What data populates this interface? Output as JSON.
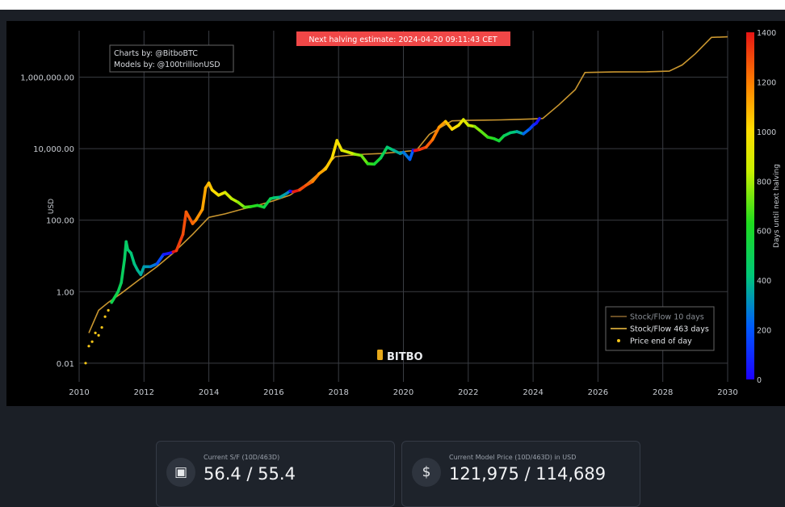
{
  "chart_data": {
    "type": "scatter",
    "title": "",
    "xlabel": "",
    "ylabel": "USD",
    "colorbar_label": "Days until next halving",
    "y_scale": "log",
    "xlim": [
      2010,
      2030
    ],
    "ylim": [
      0.003,
      20000000
    ],
    "x_ticks": [
      2010,
      2012,
      2014,
      2016,
      2018,
      2020,
      2022,
      2024,
      2026,
      2028,
      2030
    ],
    "y_ticks": [
      0.01,
      1,
      100,
      10000,
      1000000
    ],
    "y_tick_labels": [
      "0.01",
      "1.00",
      "100.00",
      "10,000.00",
      "1,000,000.00"
    ],
    "colorbar_range": [
      0,
      1400
    ],
    "colorbar_ticks": [
      0,
      200,
      400,
      600,
      800,
      1000,
      1200,
      1400
    ],
    "grid": true,
    "legend_position": "bottom-right",
    "annotation": "Next halving estimate: 2024-04-20 09:11:43 CET",
    "credits": [
      "Charts by: @BitboBTC",
      "Models by: @100trillionUSD"
    ],
    "watermark": "BITBO",
    "legend": [
      {
        "name": "Stock/Flow 10 days",
        "color": "#7a5a2a",
        "kind": "line"
      },
      {
        "name": "Stock/Flow 463 days",
        "color": "#d4a83a",
        "kind": "line"
      },
      {
        "name": "Price end of day",
        "color": "#f5c518",
        "kind": "dot"
      }
    ],
    "series": [
      {
        "name": "Stock/Flow 463 days",
        "kind": "line",
        "color": "#c9962f",
        "points": [
          [
            2010.3,
            0.07
          ],
          [
            2010.6,
            0.3
          ],
          [
            2010.9,
            0.5
          ],
          [
            2011.3,
            0.9
          ],
          [
            2011.8,
            2
          ],
          [
            2012.4,
            5
          ],
          [
            2012.9,
            12
          ],
          [
            2013.5,
            40
          ],
          [
            2014.0,
            120
          ],
          [
            2014.5,
            150
          ],
          [
            2015.0,
            200
          ],
          [
            2015.5,
            260
          ],
          [
            2016.0,
            350
          ],
          [
            2016.5,
            500
          ],
          [
            2017.0,
            1000
          ],
          [
            2017.5,
            2500
          ],
          [
            2017.9,
            6000
          ],
          [
            2018.3,
            6500
          ],
          [
            2018.8,
            7000
          ],
          [
            2019.3,
            7300
          ],
          [
            2019.8,
            8000
          ],
          [
            2020.4,
            9000
          ],
          [
            2020.8,
            25000
          ],
          [
            2021.2,
            42000
          ],
          [
            2021.5,
            60000
          ],
          [
            2022.0,
            62000
          ],
          [
            2022.5,
            63000
          ],
          [
            2023.0,
            64000
          ],
          [
            2023.5,
            66000
          ],
          [
            2024.0,
            68000
          ],
          [
            2024.3,
            70000
          ],
          [
            2024.8,
            170000
          ],
          [
            2025.3,
            450000
          ],
          [
            2025.6,
            1350000
          ],
          [
            2026.5,
            1400000
          ],
          [
            2027.5,
            1420000
          ],
          [
            2028.2,
            1480000
          ],
          [
            2028.6,
            2200000
          ],
          [
            2029.0,
            4500000
          ],
          [
            2029.5,
            13000000
          ],
          [
            2030.0,
            13500000
          ]
        ]
      },
      {
        "name": "Price end of day",
        "kind": "colored-price",
        "points": [
          [
            2010.2,
            0.01,
            800
          ],
          [
            2010.3,
            0.03,
            770
          ],
          [
            2010.4,
            0.04,
            740
          ],
          [
            2010.5,
            0.07,
            710
          ],
          [
            2010.6,
            0.06,
            680
          ],
          [
            2010.7,
            0.1,
            650
          ],
          [
            2010.8,
            0.2,
            620
          ],
          [
            2010.9,
            0.3,
            590
          ],
          [
            2011.0,
            0.5,
            560
          ],
          [
            2011.2,
            1,
            520
          ],
          [
            2011.3,
            1.8,
            500
          ],
          [
            2011.4,
            8,
            480
          ],
          [
            2011.45,
            25,
            470
          ],
          [
            2011.5,
            15,
            460
          ],
          [
            2011.6,
            12,
            440
          ],
          [
            2011.7,
            6,
            420
          ],
          [
            2011.8,
            4,
            400
          ],
          [
            2011.9,
            3,
            380
          ],
          [
            2012.0,
            5,
            360
          ],
          [
            2012.2,
            5,
            330
          ],
          [
            2012.4,
            6,
            270
          ],
          [
            2012.6,
            11,
            180
          ],
          [
            2012.8,
            12,
            60
          ],
          [
            2012.9,
            13,
            20
          ],
          [
            2013.0,
            14,
            1400
          ],
          [
            2013.2,
            40,
            1320
          ],
          [
            2013.3,
            170,
            1290
          ],
          [
            2013.5,
            80,
            1260
          ],
          [
            2013.6,
            100,
            1230
          ],
          [
            2013.8,
            200,
            1160
          ],
          [
            2013.9,
            800,
            1120
          ],
          [
            2014.0,
            1100,
            1100
          ],
          [
            2014.1,
            700,
            1060
          ],
          [
            2014.3,
            500,
            1000
          ],
          [
            2014.5,
            600,
            950
          ],
          [
            2014.7,
            400,
            880
          ],
          [
            2014.9,
            320,
            820
          ],
          [
            2015.1,
            230,
            760
          ],
          [
            2015.3,
            240,
            700
          ],
          [
            2015.5,
            260,
            640
          ],
          [
            2015.7,
            230,
            600
          ],
          [
            2015.9,
            400,
            530
          ],
          [
            2016.0,
            420,
            490
          ],
          [
            2016.2,
            440,
            420
          ],
          [
            2016.4,
            560,
            350
          ],
          [
            2016.5,
            650,
            300
          ],
          [
            2016.6,
            620,
            30
          ],
          [
            2016.8,
            700,
            1380
          ],
          [
            2017.0,
            950,
            1300
          ],
          [
            2017.2,
            1200,
            1260
          ],
          [
            2017.4,
            2000,
            1190
          ],
          [
            2017.6,
            2700,
            1120
          ],
          [
            2017.8,
            5500,
            1050
          ],
          [
            2017.95,
            17000,
            1000
          ],
          [
            2018.1,
            9000,
            970
          ],
          [
            2018.3,
            8000,
            900
          ],
          [
            2018.5,
            7000,
            850
          ],
          [
            2018.7,
            6500,
            780
          ],
          [
            2018.9,
            3800,
            720
          ],
          [
            2019.1,
            3700,
            650
          ],
          [
            2019.3,
            5500,
            580
          ],
          [
            2019.5,
            11000,
            500
          ],
          [
            2019.7,
            9000,
            430
          ],
          [
            2019.9,
            7300,
            370
          ],
          [
            2020.0,
            8000,
            330
          ],
          [
            2020.2,
            5000,
            260
          ],
          [
            2020.3,
            9000,
            220
          ],
          [
            2020.35,
            8800,
            20
          ],
          [
            2020.5,
            9500,
            1400
          ],
          [
            2020.7,
            11000,
            1330
          ],
          [
            2020.9,
            18000,
            1260
          ],
          [
            2021.1,
            40000,
            1200
          ],
          [
            2021.3,
            58000,
            1140
          ],
          [
            2021.5,
            35000,
            1060
          ],
          [
            2021.7,
            45000,
            1000
          ],
          [
            2021.85,
            65000,
            960
          ],
          [
            2022.0,
            45000,
            900
          ],
          [
            2022.2,
            42000,
            840
          ],
          [
            2022.4,
            30000,
            760
          ],
          [
            2022.6,
            21000,
            700
          ],
          [
            2022.8,
            19000,
            650
          ],
          [
            2022.95,
            16500,
            600
          ],
          [
            2023.1,
            23000,
            560
          ],
          [
            2023.3,
            28000,
            480
          ],
          [
            2023.5,
            30000,
            420
          ],
          [
            2023.7,
            26000,
            360
          ],
          [
            2023.9,
            36000,
            240
          ],
          [
            2024.0,
            45000,
            160
          ],
          [
            2024.1,
            52000,
            100
          ],
          [
            2024.2,
            70000,
            40
          ]
        ]
      }
    ]
  },
  "stats": [
    {
      "icon": "chart-image-icon",
      "glyph": "▣",
      "label": "Current S/F (10D/463D)",
      "value": "56.4 / 55.4"
    },
    {
      "icon": "dollar-icon",
      "glyph": "$",
      "label": "Current Model Price (10D/463D) in USD",
      "value": "121,975 / 114,689"
    }
  ]
}
